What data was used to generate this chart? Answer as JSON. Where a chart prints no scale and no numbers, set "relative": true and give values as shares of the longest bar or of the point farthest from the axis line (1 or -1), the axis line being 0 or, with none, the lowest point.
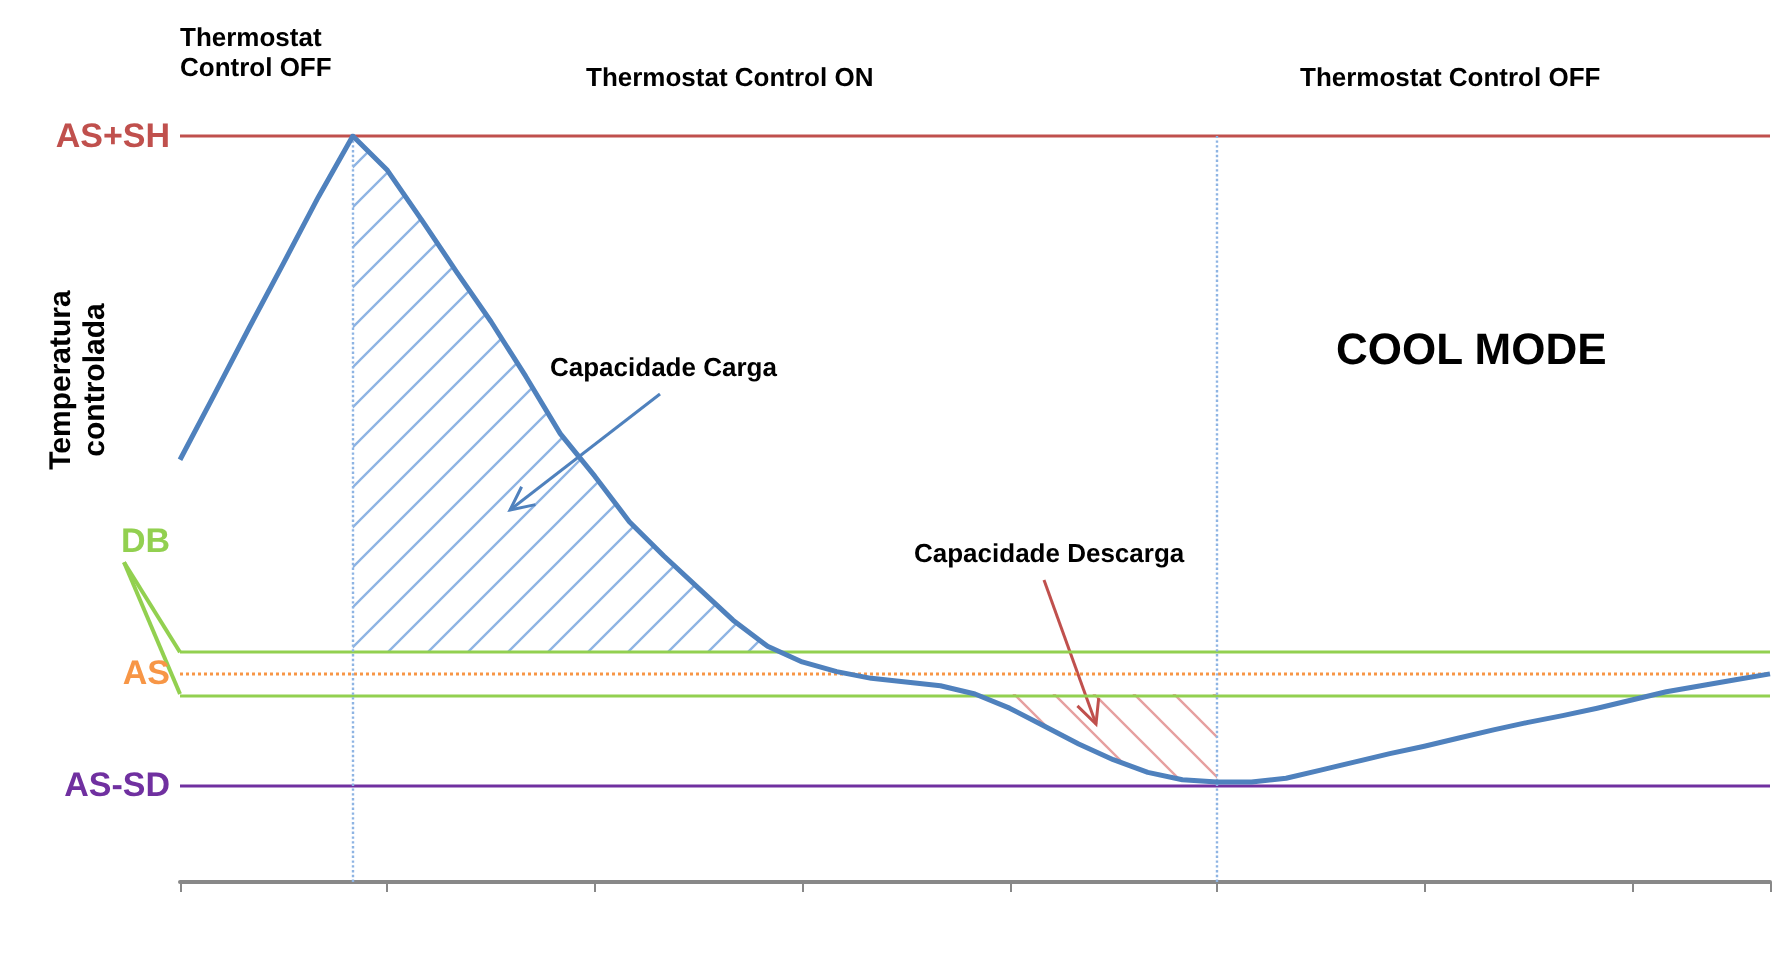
{
  "chart_data": {
    "type": "line",
    "ylabel": "Temperatura controlada",
    "relative": true,
    "marker": "none",
    "categories": [
      null,
      null,
      null,
      null,
      null,
      null,
      null,
      null,
      null,
      null,
      null,
      null,
      null,
      null,
      null,
      null,
      null,
      null,
      null,
      null,
      null,
      null,
      null,
      null,
      null,
      null,
      null,
      null,
      null,
      null,
      null,
      null,
      null,
      null,
      null,
      null,
      null,
      null,
      null,
      null,
      null,
      null,
      null,
      null,
      null,
      null,
      null
    ],
    "series": [
      {
        "color": "#4f81bd",
        "values": [
          0.566,
          0.654,
          0.743,
          0.83,
          0.918,
          1.0,
          0.954,
          0.887,
          0.818,
          0.751,
          0.678,
          0.601,
          0.544,
          0.483,
          0.437,
          0.394,
          0.351,
          0.316,
          0.295,
          0.282,
          0.273,
          0.268,
          0.263,
          0.252,
          0.233,
          0.209,
          0.185,
          0.164,
          0.147,
          0.137,
          0.134,
          0.134,
          0.139,
          0.15,
          0.161,
          0.172,
          0.182,
          0.193,
          0.204,
          0.214,
          0.223,
          0.233,
          0.244,
          0.255,
          0.263,
          0.271,
          0.279
        ]
      }
    ],
    "ref_lines": [
      {
        "axis": "y",
        "value": 1.0,
        "label": "AS+SH",
        "color": "#c0504d"
      },
      {
        "axis": "y",
        "value": 0.308,
        "label": "DB",
        "color": "#92d050"
      },
      {
        "axis": "y",
        "value": 0.279,
        "label": "AS",
        "color": "#f79646",
        "line_style": "dotted"
      },
      {
        "axis": "y",
        "value": 0.252,
        "label": null,
        "color": "#92d050"
      },
      {
        "axis": "y",
        "value": 0.129,
        "label": "AS-SD",
        "color": "#7030a0"
      }
    ],
    "annotations": [
      "Capacidade Carga",
      "Capacidade Descarga",
      "COOL MODE",
      "Thermostat Control OFF",
      "Thermostat Control ON",
      "Thermostat Control OFF"
    ]
  }
}
